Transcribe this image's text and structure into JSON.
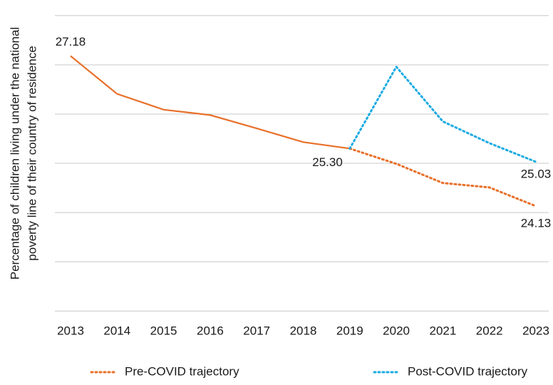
{
  "chart_data": {
    "type": "line",
    "y_label": [
      "Percentage of children living under the national",
      "poverty line of their country of residence"
    ],
    "categories": [
      "2013",
      "2014",
      "2015",
      "2016",
      "2017",
      "2018",
      "2019",
      "2020",
      "2021",
      "2022",
      "2023"
    ],
    "series": [
      {
        "name": "Pre-COVID trajectory",
        "color": "#e8702a",
        "values": [
          27.18,
          26.41,
          26.09,
          25.98,
          25.71,
          25.43,
          25.3,
          24.99,
          24.6,
          24.51,
          24.13
        ],
        "value_labels": [
          "27.18",
          null,
          null,
          null,
          null,
          null,
          "25.30",
          null,
          null,
          null,
          "24.13"
        ]
      },
      {
        "name": "Post-COVID trajectory",
        "color": "#1cabe2",
        "values": [
          null,
          null,
          null,
          null,
          null,
          null,
          25.3,
          26.96,
          25.85,
          25.41,
          25.03
        ],
        "value_labels": [
          null,
          null,
          null,
          null,
          null,
          null,
          null,
          null,
          null,
          null,
          "25.03"
        ]
      }
    ],
    "ylim": [
      21.8,
      28.1
    ],
    "yticks": [
      22,
      23,
      24,
      25,
      26,
      27,
      28
    ],
    "grid": true
  }
}
